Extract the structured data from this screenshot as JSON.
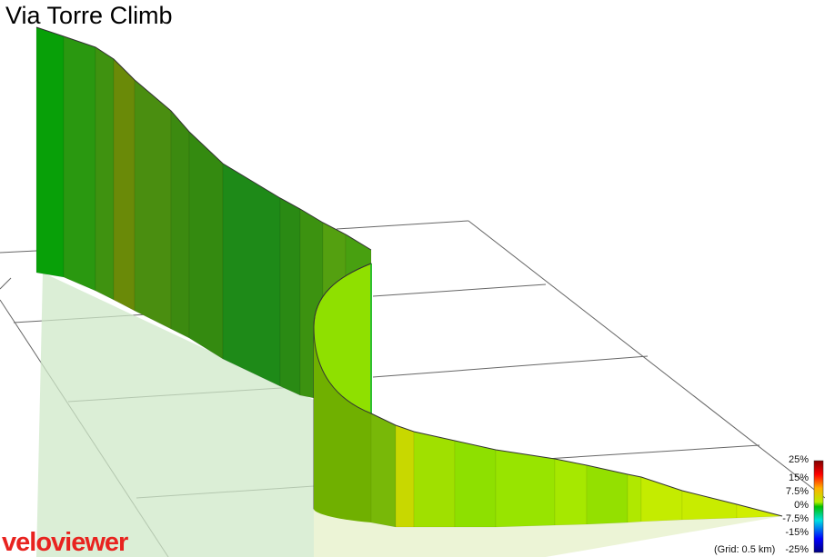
{
  "header": {
    "title": "Via Torre Climb"
  },
  "legend": {
    "labels": [
      "25%",
      "15%",
      "7.5%",
      "0%",
      "-7.5%",
      "-15%",
      "-25%"
    ],
    "grid_note": "(Grid: 0.5 km)"
  },
  "logo": {
    "text": "veloviewer"
  }
}
